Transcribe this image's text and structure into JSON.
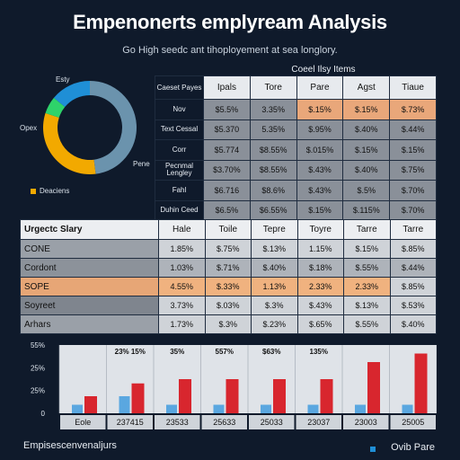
{
  "header": {
    "title": "Empenonerts emplyream Analysis",
    "subtitle": "Go High seedc ant  tihoployement at sea longlory."
  },
  "donut": {
    "labels": {
      "top": "Esty",
      "left": "Opex",
      "right": "Pene"
    },
    "legend": "Deaciens",
    "slices": [
      {
        "value": 48,
        "color": "#6b93ad"
      },
      {
        "value": 32,
        "color": "#f2a900"
      },
      {
        "value": 6,
        "color": "#2ed36a"
      },
      {
        "value": 14,
        "color": "#1f8fd6"
      }
    ]
  },
  "table1": {
    "caption": "Coeel Ilsy Items",
    "corner": "Caeset Payes",
    "columns": [
      "Ipals",
      "Tore",
      "Pare",
      "Agst",
      "Tiaue"
    ],
    "rows": [
      {
        "label": "Nov",
        "cells": [
          "$5.5%",
          "3.35%",
          "$.15%",
          "$.15%",
          "$.73%"
        ]
      },
      {
        "label": "Text Cessal",
        "cells": [
          "$5.370",
          "5.35%",
          "$.95%",
          "$.40%",
          "$.44%"
        ]
      },
      {
        "label": "Corr",
        "cells": [
          "$5.774",
          "$8.55%",
          "$.015%",
          "$.15%",
          "$.15%"
        ]
      },
      {
        "label": "Pecnmal Lengley",
        "cells": [
          "$3.70%",
          "$8.55%",
          "$.43%",
          "$.40%",
          "$.75%"
        ]
      },
      {
        "label": "Fahl",
        "cells": [
          "$6.716",
          "$8.6%",
          "$.43%",
          "$.5%",
          "$.70%"
        ]
      },
      {
        "label": "Duhin Ceed",
        "cells": [
          "$6.5%",
          "$6.55%",
          "$.15%",
          "$.115%",
          "$.70%"
        ]
      }
    ]
  },
  "table2": {
    "title": "Urgectc Slary",
    "columns": [
      "Hale",
      "Toile",
      "Tepre",
      "Toyre",
      "Tarre"
    ],
    "rows": [
      {
        "label": "CONE",
        "cells": [
          "1.85%",
          "$.75%",
          "$.13%",
          "1.15%",
          "$.15%",
          "$.85%"
        ]
      },
      {
        "label": "Cordont",
        "cells": [
          "1.03%",
          "$.71%",
          "$.40%",
          "$.18%",
          "$.55%",
          "$.44%"
        ]
      },
      {
        "label": "SOPE",
        "cells": [
          "4.55%",
          "$.33%",
          "1.13%",
          "2.33%",
          "2.33%",
          "$.85%"
        ]
      },
      {
        "label": "Soyreet",
        "cells": [
          "3.73%",
          "$.03%",
          "$.3%",
          "$.43%",
          "$.13%",
          "$.53%"
        ]
      },
      {
        "label": "Arhars",
        "cells": [
          "1.73%",
          "$.3%",
          "$.23%",
          "$.65%",
          "$.55%",
          "$.40%"
        ]
      }
    ]
  },
  "chart_data": {
    "type": "bar",
    "y_ticks": [
      "55%",
      "25%",
      "25%",
      "0"
    ],
    "categories": [
      "Eole",
      "237415",
      "23533",
      "25633",
      "25033",
      "23037",
      "23003",
      "25005"
    ],
    "series": [
      {
        "color": "#5aa7e0",
        "values": [
          2,
          4,
          2,
          2,
          2,
          2,
          2,
          2
        ]
      },
      {
        "color": "#d8262e",
        "values": [
          4,
          7,
          8,
          8,
          8,
          8,
          12,
          14
        ]
      }
    ],
    "bar_labels": [
      "",
      "23%  15%",
      "35%",
      "557%",
      "$63%",
      "135%",
      "",
      ""
    ],
    "legend": "Ovib Pare"
  },
  "footer": {
    "left": "Empisescenvenaljurs",
    "right": "Ovib Pare"
  }
}
